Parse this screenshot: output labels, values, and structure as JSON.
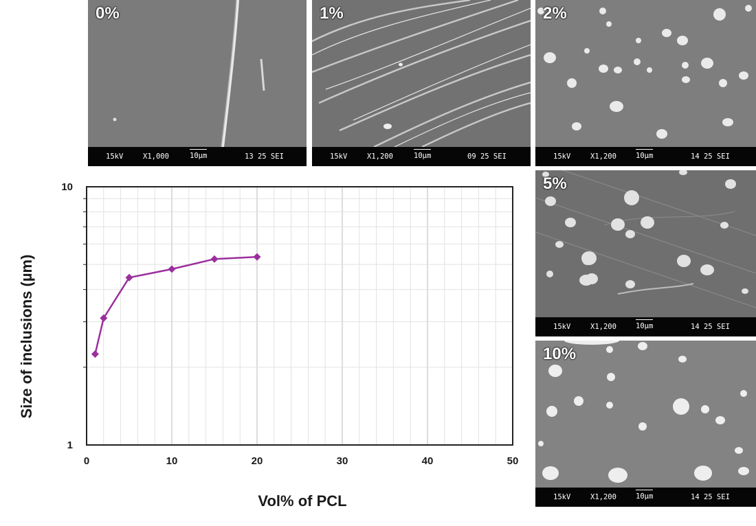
{
  "micrographs": [
    {
      "label": "0%",
      "voltage": "15kV",
      "mag": "X1,000",
      "scale": "10µm",
      "code": "13 25 SEI"
    },
    {
      "label": "1%",
      "voltage": "15kV",
      "mag": "X1,200",
      "scale": "10µm",
      "code": "09 25 SEI"
    },
    {
      "label": "2%",
      "voltage": "15kV",
      "mag": "X1,200",
      "scale": "10µm",
      "code": "14 25 SEI"
    },
    {
      "label": "5%",
      "voltage": "15kV",
      "mag": "X1,200",
      "scale": "10µm",
      "code": "14 25 SEI"
    },
    {
      "label": "10%",
      "voltage": "15kV",
      "mag": "X1,200",
      "scale": "10µm",
      "code": "14 25 SEI"
    }
  ],
  "colors": {
    "series": "#9b2f9d",
    "grid": "#e2e2e2",
    "axis": "#222222"
  },
  "chart_data": {
    "type": "line",
    "title": "",
    "xlabel": "Vol% of PCL",
    "ylabel": "Size of inclusions (µm)",
    "xlim": [
      0,
      50
    ],
    "ylim": [
      1,
      10
    ],
    "yscale": "log",
    "grid": true,
    "legend": "none",
    "x_ticks": [
      "0",
      "10",
      "20",
      "30",
      "40",
      "50"
    ],
    "y_ticks": [
      "1",
      "10"
    ],
    "series": [
      {
        "x": [
          1,
          2,
          5,
          10,
          15,
          20
        ],
        "y": [
          2.25,
          3.1,
          4.45,
          4.8,
          5.25,
          5.35
        ],
        "marker": "diamond"
      }
    ]
  }
}
